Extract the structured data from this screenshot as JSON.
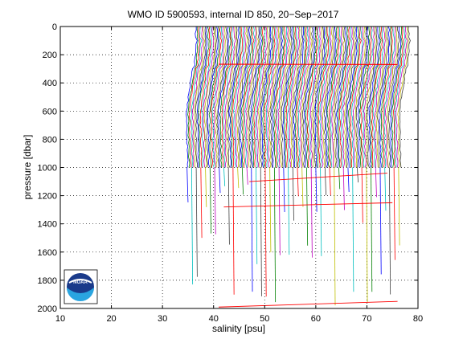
{
  "chart_data": {
    "type": "line",
    "title": "WMO ID 5900593, internal ID 850, 20−Sep−2017",
    "xlabel": "salinity [psu]",
    "ylabel": "pressure [dbar]",
    "xlim": [
      10,
      80
    ],
    "ylim": [
      0,
      2000
    ],
    "y_reversed": true,
    "x_ticks": [
      10,
      20,
      30,
      40,
      50,
      60,
      70,
      80
    ],
    "y_ticks": [
      0,
      200,
      400,
      600,
      800,
      1000,
      1200,
      1400,
      1600,
      1800,
      2000
    ],
    "x_tick_labels": [
      "10",
      "20",
      "30",
      "40",
      "50",
      "60",
      "70",
      "80"
    ],
    "y_tick_labels": [
      "0",
      "200",
      "400",
      "600",
      "800",
      "1000",
      "1200",
      "1400",
      "1600",
      "1800",
      "2000"
    ],
    "grid": true,
    "profiles_description": "Waterfall of many salinity profiles, each successive profile offset by +0.3 psu; shallow portion (0-1000 dbar) dense, deeper portions sparse",
    "profile_count": 140,
    "profile_offset_psu": 0.3,
    "first_profile_surface_salinity": 36.2,
    "surface_pressure": 0,
    "deep_pressure": 1000,
    "colors": [
      "#0000ff",
      "#008000",
      "#ff0000",
      "#00bfbf",
      "#bf00bf",
      "#bfbf00",
      "#404040"
    ],
    "highlight_color": "#ff0000"
  },
  "logo": {
    "text": "NOAA"
  }
}
